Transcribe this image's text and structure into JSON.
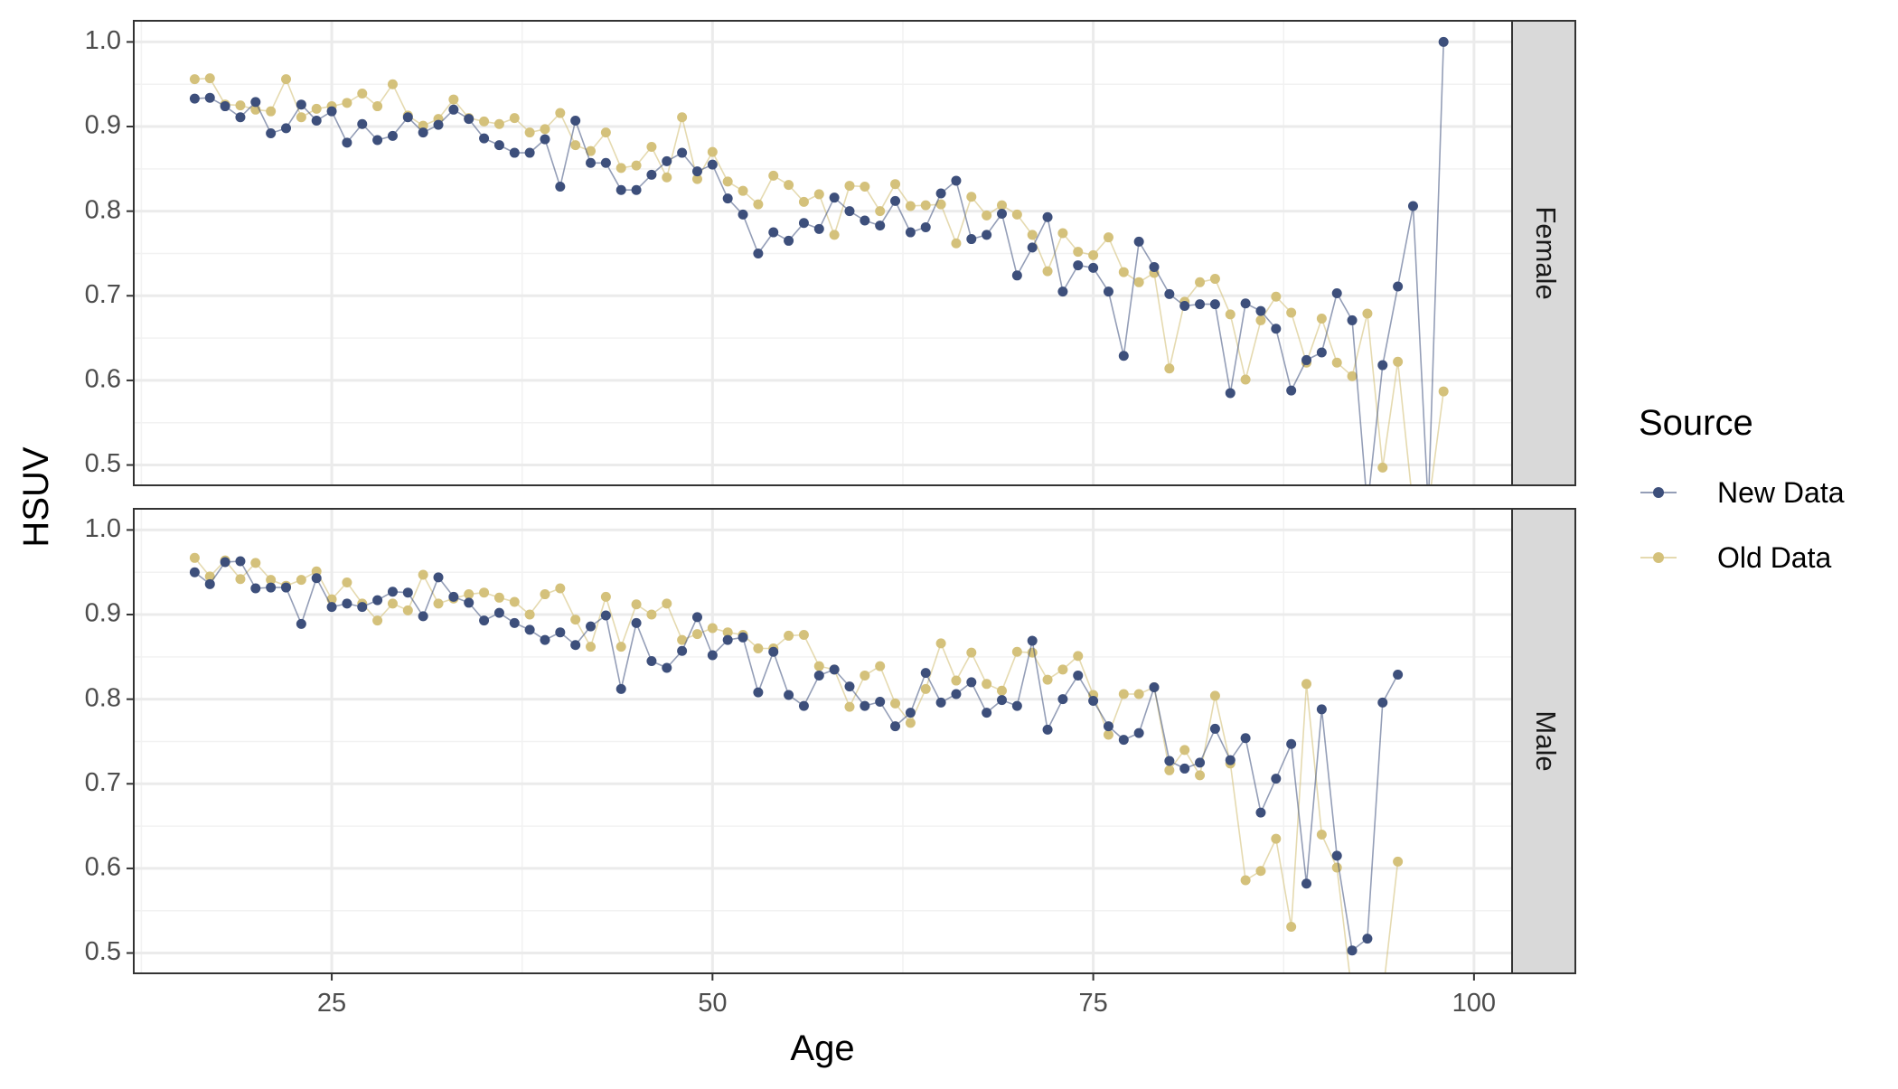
{
  "chart_data": {
    "type": "line",
    "xlabel": "Age",
    "ylabel": "HSUV",
    "xlim": [
      12,
      102.5
    ],
    "ylim": [
      0.476,
      1.025
    ],
    "x_ticks": [
      25,
      50,
      75,
      100
    ],
    "y_ticks": [
      0.5,
      0.6,
      0.7,
      0.8,
      0.9,
      1.0
    ],
    "y_tick_labels": [
      "0.5",
      "0.6",
      "0.7",
      "0.8",
      "0.9",
      "1.0"
    ],
    "grid": true,
    "legend": {
      "title": "Source",
      "position": "right",
      "entries": [
        {
          "name": "New Data",
          "color": "#3d4f7b"
        },
        {
          "name": "Old Data",
          "color": "#d4c17b"
        }
      ]
    },
    "panels": [
      {
        "facet": "Female",
        "series": [
          {
            "name": "New Data",
            "color": "#3d4f7b",
            "x": [
              16,
              17,
              18,
              19,
              20,
              21,
              22,
              23,
              24,
              25,
              26,
              27,
              28,
              29,
              30,
              31,
              32,
              33,
              34,
              35,
              36,
              37,
              38,
              39,
              40,
              41,
              42,
              43,
              44,
              45,
              46,
              47,
              48,
              49,
              50,
              51,
              52,
              53,
              54,
              55,
              56,
              57,
              58,
              59,
              60,
              61,
              62,
              63,
              64,
              65,
              66,
              67,
              68,
              69,
              70,
              71,
              72,
              73,
              74,
              75,
              76,
              77,
              78,
              79,
              80,
              81,
              82,
              83,
              84,
              85,
              86,
              87,
              88,
              89,
              90,
              91,
              92,
              93,
              94,
              95,
              96,
              97,
              98
            ],
            "y": [
              0.933,
              0.934,
              0.924,
              0.911,
              0.929,
              0.892,
              0.898,
              0.926,
              0.907,
              0.918,
              0.881,
              0.903,
              0.884,
              0.889,
              0.911,
              0.893,
              0.902,
              0.92,
              0.909,
              0.886,
              0.878,
              0.869,
              0.869,
              0.885,
              0.829,
              0.907,
              0.857,
              0.857,
              0.825,
              0.825,
              0.843,
              0.859,
              0.869,
              0.847,
              0.855,
              0.815,
              0.796,
              0.75,
              0.775,
              0.765,
              0.786,
              0.779,
              0.816,
              0.8,
              0.789,
              0.783,
              0.812,
              0.775,
              0.781,
              0.821,
              0.836,
              0.767,
              0.772,
              0.797,
              0.724,
              0.757,
              0.793,
              0.705,
              0.736,
              0.733,
              0.705,
              0.629,
              0.764,
              0.734,
              0.702,
              0.688,
              0.69,
              0.69,
              0.585,
              0.691,
              0.682,
              0.661,
              0.588,
              0.624,
              0.633,
              0.703,
              0.671,
              0.45,
              0.618,
              0.711,
              0.806,
              0.45,
              1.0
            ]
          },
          {
            "name": "Old Data",
            "color": "#d4c17b",
            "x": [
              16,
              17,
              18,
              19,
              20,
              21,
              22,
              23,
              24,
              25,
              26,
              27,
              28,
              29,
              30,
              31,
              32,
              33,
              34,
              35,
              36,
              37,
              38,
              39,
              40,
              41,
              42,
              43,
              44,
              45,
              46,
              47,
              48,
              49,
              50,
              51,
              52,
              53,
              54,
              55,
              56,
              57,
              58,
              59,
              60,
              61,
              62,
              63,
              64,
              65,
              66,
              67,
              68,
              69,
              70,
              71,
              72,
              73,
              74,
              75,
              76,
              77,
              78,
              79,
              80,
              81,
              82,
              83,
              84,
              85,
              86,
              87,
              88,
              89,
              90,
              91,
              92,
              93,
              94,
              95,
              96,
              97,
              98
            ],
            "y": [
              0.956,
              0.957,
              0.926,
              0.925,
              0.92,
              0.918,
              0.956,
              0.911,
              0.921,
              0.924,
              0.928,
              0.939,
              0.924,
              0.95,
              0.913,
              0.901,
              0.909,
              0.932,
              0.91,
              0.906,
              0.903,
              0.91,
              0.893,
              0.897,
              0.916,
              0.878,
              0.871,
              0.893,
              0.851,
              0.854,
              0.876,
              0.84,
              0.911,
              0.838,
              0.87,
              0.835,
              0.824,
              0.808,
              0.842,
              0.831,
              0.811,
              0.82,
              0.772,
              0.83,
              0.829,
              0.8,
              0.832,
              0.806,
              0.807,
              0.808,
              0.762,
              0.817,
              0.795,
              0.807,
              0.796,
              0.772,
              0.729,
              0.774,
              0.752,
              0.748,
              0.769,
              0.728,
              0.716,
              0.727,
              0.614,
              0.693,
              0.716,
              0.72,
              0.678,
              0.601,
              0.671,
              0.699,
              0.68,
              0.621,
              0.673,
              0.621,
              0.605,
              0.679,
              0.497,
              0.622,
              0.45,
              0.45,
              0.587
            ]
          }
        ]
      },
      {
        "facet": "Male",
        "series": [
          {
            "name": "New Data",
            "color": "#3d4f7b",
            "x": [
              16,
              17,
              18,
              19,
              20,
              21,
              22,
              23,
              24,
              25,
              26,
              27,
              28,
              29,
              30,
              31,
              32,
              33,
              34,
              35,
              36,
              37,
              38,
              39,
              40,
              41,
              42,
              43,
              44,
              45,
              46,
              47,
              48,
              49,
              50,
              51,
              52,
              53,
              54,
              55,
              56,
              57,
              58,
              59,
              60,
              61,
              62,
              63,
              64,
              65,
              66,
              67,
              68,
              69,
              70,
              71,
              72,
              73,
              74,
              75,
              76,
              77,
              78,
              79,
              80,
              81,
              82,
              83,
              84,
              85,
              86,
              87,
              88,
              89,
              90,
              91,
              92,
              93,
              94,
              95
            ],
            "y": [
              0.95,
              0.936,
              0.962,
              0.963,
              0.931,
              0.932,
              0.932,
              0.889,
              0.943,
              0.909,
              0.913,
              0.909,
              0.917,
              0.927,
              0.926,
              0.898,
              0.944,
              0.921,
              0.914,
              0.893,
              0.902,
              0.89,
              0.882,
              0.87,
              0.879,
              0.864,
              0.886,
              0.899,
              0.812,
              0.89,
              0.845,
              0.837,
              0.857,
              0.897,
              0.852,
              0.87,
              0.873,
              0.808,
              0.856,
              0.805,
              0.792,
              0.828,
              0.835,
              0.815,
              0.792,
              0.797,
              0.768,
              0.784,
              0.831,
              0.796,
              0.806,
              0.82,
              0.784,
              0.799,
              0.792,
              0.869,
              0.764,
              0.8,
              0.828,
              0.798,
              0.768,
              0.752,
              0.76,
              0.814,
              0.727,
              0.718,
              0.725,
              0.765,
              0.728,
              0.754,
              0.666,
              0.706,
              0.747,
              0.582,
              0.788,
              0.615,
              0.503,
              0.517,
              0.796,
              0.829
            ]
          },
          {
            "name": "Old Data",
            "color": "#d4c17b",
            "x": [
              16,
              17,
              18,
              19,
              20,
              21,
              22,
              23,
              24,
              25,
              26,
              27,
              28,
              29,
              30,
              31,
              32,
              33,
              34,
              35,
              36,
              37,
              38,
              39,
              40,
              41,
              42,
              43,
              44,
              45,
              46,
              47,
              48,
              49,
              50,
              51,
              52,
              53,
              54,
              55,
              56,
              57,
              58,
              59,
              60,
              61,
              62,
              63,
              64,
              65,
              66,
              67,
              68,
              69,
              70,
              71,
              72,
              73,
              74,
              75,
              76,
              77,
              78,
              79,
              80,
              81,
              82,
              83,
              84,
              85,
              86,
              87,
              88,
              89,
              90,
              91,
              92,
              93,
              94,
              95
            ],
            "y": [
              0.967,
              0.945,
              0.964,
              0.942,
              0.961,
              0.941,
              0.934,
              0.941,
              0.951,
              0.918,
              0.938,
              0.913,
              0.893,
              0.913,
              0.905,
              0.947,
              0.913,
              0.919,
              0.924,
              0.926,
              0.92,
              0.915,
              0.9,
              0.924,
              0.931,
              0.894,
              0.862,
              0.921,
              0.862,
              0.912,
              0.9,
              0.913,
              0.87,
              0.877,
              0.884,
              0.879,
              0.876,
              0.86,
              0.86,
              0.875,
              0.876,
              0.839,
              0.835,
              0.791,
              0.828,
              0.839,
              0.795,
              0.772,
              0.812,
              0.866,
              0.822,
              0.855,
              0.818,
              0.81,
              0.856,
              0.855,
              0.823,
              0.835,
              0.851,
              0.805,
              0.758,
              0.806,
              0.806,
              0.814,
              0.716,
              0.74,
              0.71,
              0.804,
              0.724,
              0.586,
              0.597,
              0.635,
              0.531,
              0.818,
              0.64,
              0.601,
              0.45,
              0.45,
              0.45,
              0.608
            ]
          }
        ]
      }
    ]
  }
}
